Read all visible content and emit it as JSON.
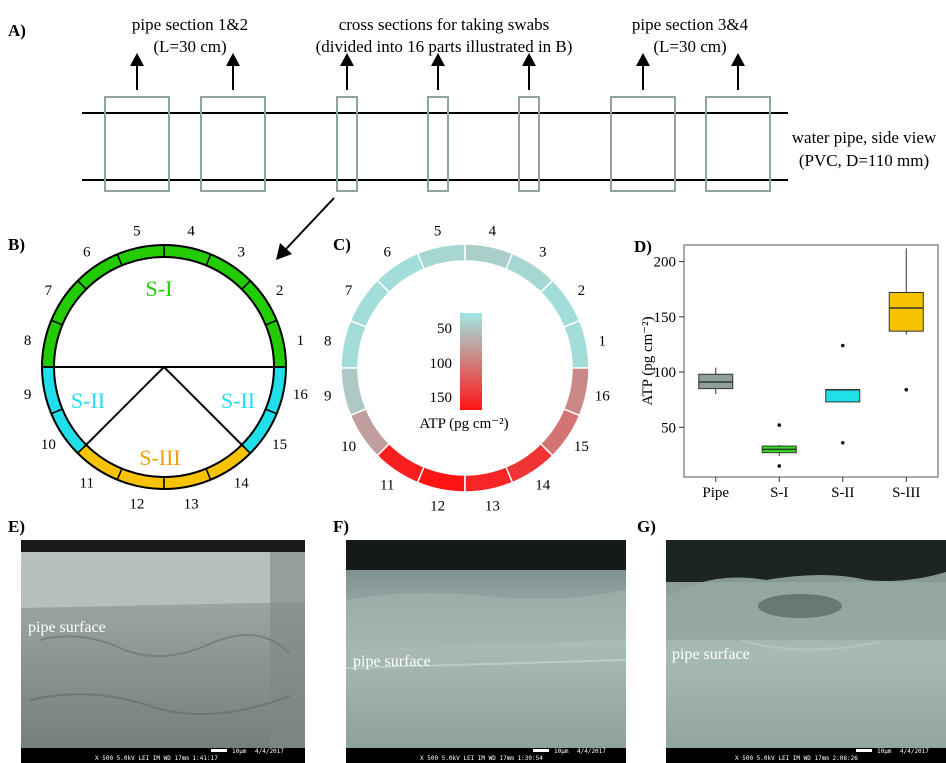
{
  "panels": {
    "a": "A)",
    "b": "B)",
    "c": "C)",
    "d": "D)",
    "e": "E)",
    "f": "F)",
    "g": "G)"
  },
  "panel_a": {
    "label_sec12_line1": "pipe section 1&2",
    "label_sec12_line2": "(L=30 cm)",
    "label_cross_line1": "cross sections for taking swabs",
    "label_cross_line2": "(divided into 16 parts illustrated in B)",
    "label_sec34_line1": "pipe section 3&4",
    "label_sec34_line2": "(L=30 cm)",
    "label_pipe_line1": "water pipe, side view",
    "label_pipe_line2": "(PVC, D=110 mm)"
  },
  "panel_b": {
    "segment_numbers": [
      "1",
      "2",
      "3",
      "4",
      "5",
      "6",
      "7",
      "8",
      "9",
      "10",
      "11",
      "12",
      "13",
      "14",
      "15",
      "16"
    ],
    "zone_s1": "S-I",
    "zone_s2_left": "S-II",
    "zone_s2_right": "S-II",
    "zone_s3": "S-III",
    "colors": {
      "s1": "#22cc00",
      "s2": "#1fdfea",
      "s3": "#f7c200"
    }
  },
  "panel_c": {
    "segment_numbers": [
      "1",
      "2",
      "3",
      "4",
      "5",
      "6",
      "7",
      "8",
      "9",
      "10",
      "11",
      "12",
      "13",
      "14",
      "15",
      "16"
    ],
    "scale_ticks": [
      "50",
      "100",
      "150"
    ],
    "scale_title": "ATP (pg cm⁻²)",
    "colors": {
      "low": "#9ee8e4",
      "high": "#ff1414"
    }
  },
  "chart_data": {
    "type": "box",
    "categories": [
      "Pipe",
      "S-I",
      "S-II",
      "S-III"
    ],
    "ylabel": "ATP (pg cm⁻²)",
    "yticks": [
      50,
      100,
      150,
      200
    ],
    "ylim": [
      5,
      215
    ],
    "boxes": [
      {
        "name": "Pipe",
        "color": "#8f9f9b",
        "min": 80,
        "q1": 85,
        "median": 91,
        "q3": 98,
        "max": 104,
        "outliers": []
      },
      {
        "name": "S-I",
        "color": "#33e020",
        "min": 24,
        "q1": 27,
        "median": 30,
        "q3": 33,
        "max": 34,
        "outliers": [
          52,
          15
        ]
      },
      {
        "name": "S-II",
        "color": "#1fdfea",
        "min": 73,
        "q1": 73,
        "median": 84,
        "q3": 84,
        "max": 84,
        "outliers": [
          124,
          36
        ]
      },
      {
        "name": "S-III",
        "color": "#f7c200",
        "min": 134,
        "q1": 137,
        "median": 158,
        "q3": 172,
        "max": 212,
        "outliers": [
          84
        ]
      }
    ]
  },
  "sem_images": {
    "e_label": "pipe surface",
    "f_label": "pipe surface",
    "g_label": "pipe surface",
    "e_bar": "X 500     5.0kV  LEI   IM     WD 17mm   1:41:17",
    "f_bar": "X 500     5.0kV  LEI   IM     WD 17mm   1:30:54",
    "g_bar": "X 500     5.0kV  LEI   IM     WD 17mm   2:08:26",
    "scale_text": "10μm",
    "date_text": "4/4/2017"
  }
}
